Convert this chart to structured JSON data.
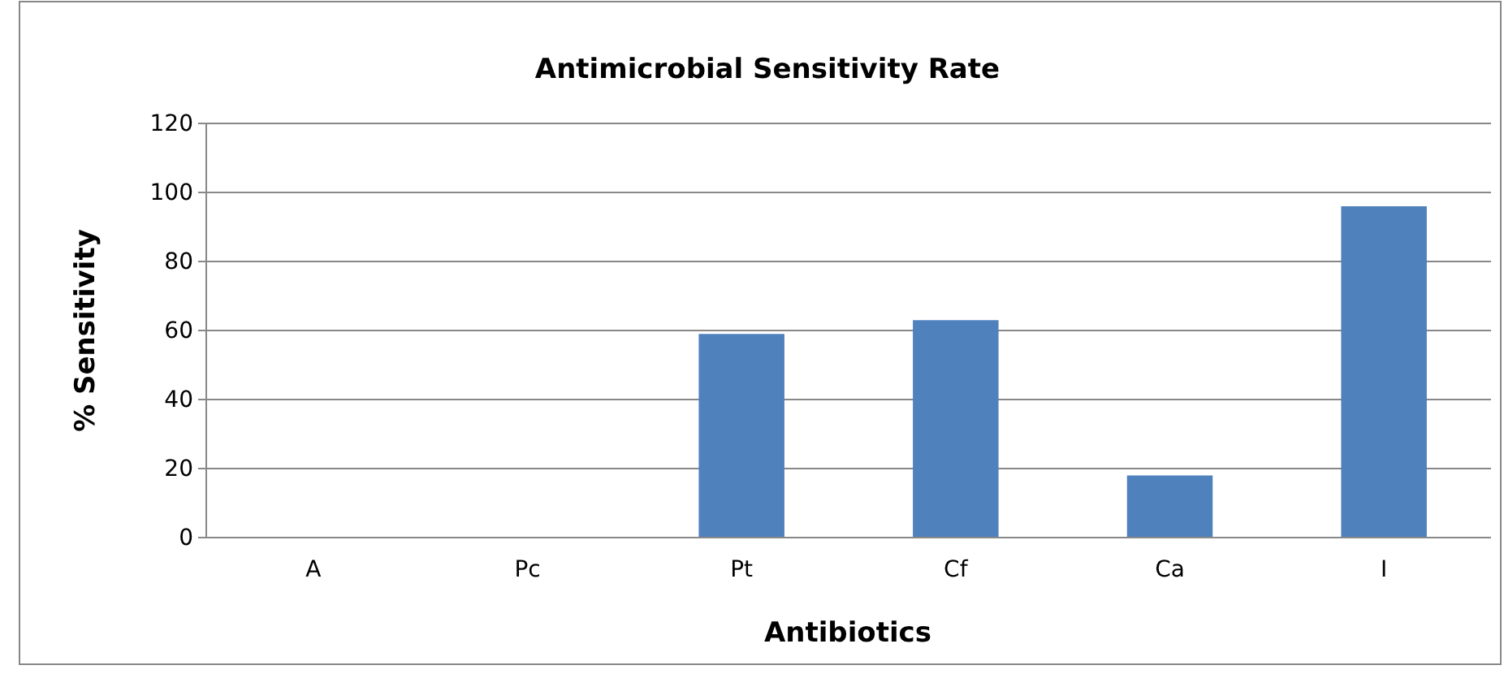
{
  "chart_data": {
    "type": "bar",
    "title": "Antimicrobial Sensitivity Rate",
    "xlabel": "Antibiotics",
    "ylabel": "% Sensitivity",
    "categories": [
      "A",
      "Pc",
      "Pt",
      "Cf",
      "Ca",
      "I"
    ],
    "values": [
      0,
      0,
      59,
      63,
      18,
      96
    ],
    "color": "#4f81bd",
    "ylim": [
      0,
      120
    ],
    "yticks": [
      0,
      20,
      40,
      60,
      80,
      100,
      120
    ],
    "grid": "y"
  }
}
